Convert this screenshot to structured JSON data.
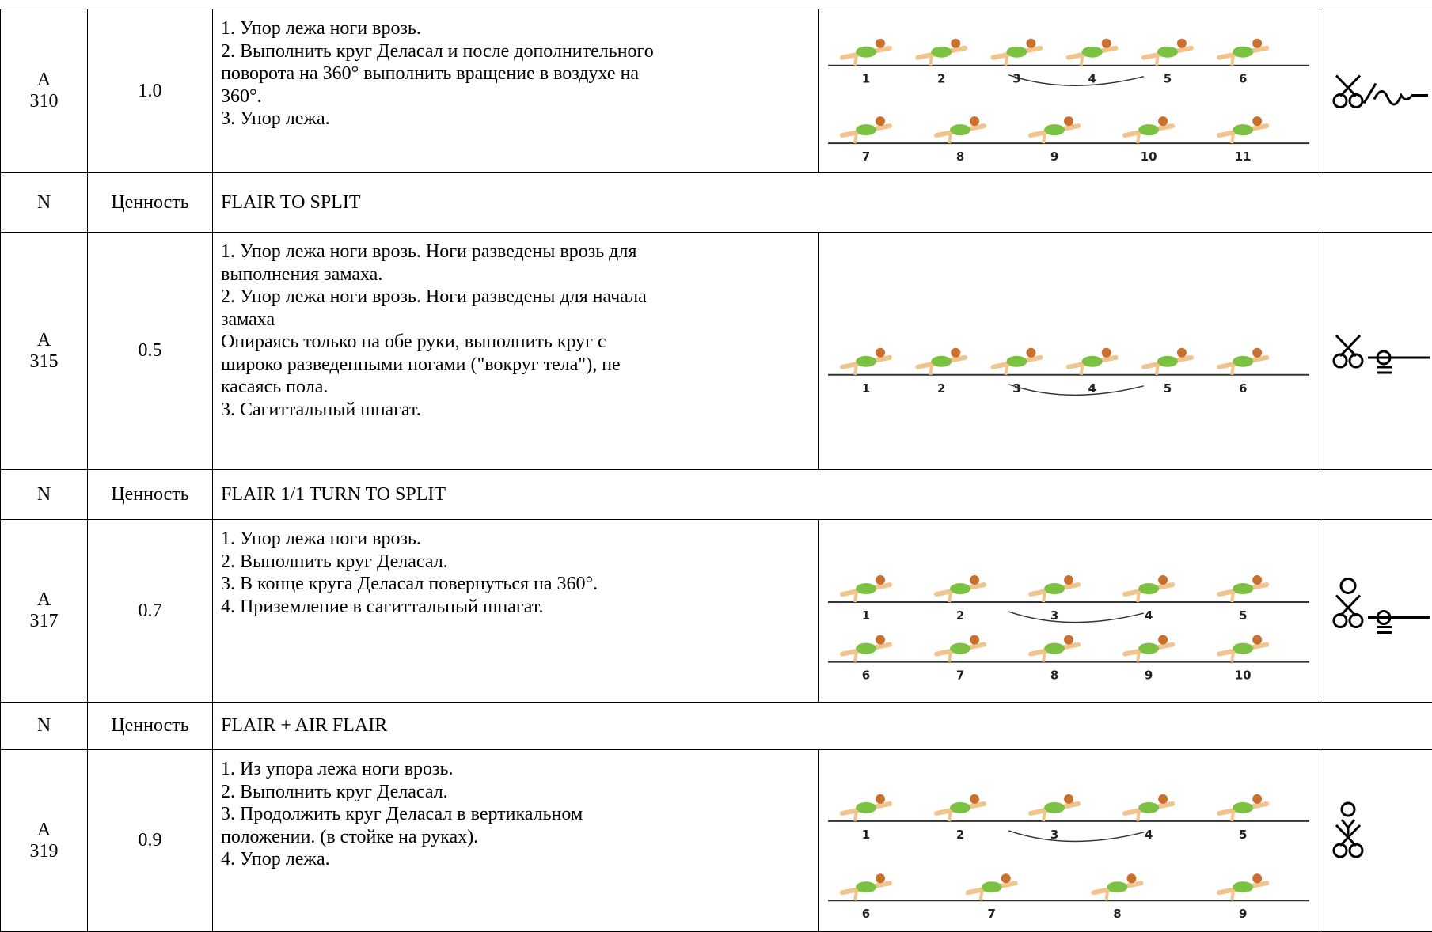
{
  "table": {
    "rows": [
      {
        "code": [
          "A",
          "310"
        ],
        "value": "1.0",
        "description": [
          "1. Упор лежа ноги врозь.",
          "2. Выполнить круг Деласал и после дополнительного",
          "поворота на 360° выполнить вращение в воздухе на",
          "360°.",
          "3. Упор лежа."
        ],
        "figure": [
          [
            "1",
            "2",
            "3",
            "4",
            "5",
            "6"
          ],
          [
            "7",
            "8",
            "9",
            "10",
            "11"
          ]
        ]
      },
      {
        "code": "N",
        "value": "Ценность",
        "name": "FLAIR TO SPLIT"
      },
      {
        "code": [
          "A",
          "315"
        ],
        "value": "0.5",
        "description": [
          "1. Упор лежа ноги врозь. Ноги разведены врозь для",
          "выполнения замаха.",
          "2. Упор лежа ноги врозь. Ноги разведены для начала",
          "замаха",
          "Опираясь только на обе руки, выполнить круг с",
          "широко разведенными ногами (\"вокруг тела\"), не",
          "касаясь пола.",
          "3. Сагиттальный шпагат."
        ],
        "figure": [
          [
            "1",
            "2",
            "3",
            "4",
            "5",
            "6"
          ]
        ]
      },
      {
        "code": "N",
        "value": "Ценность",
        "name": "FLAIR 1/1 TURN TO SPLIT"
      },
      {
        "code": [
          "A",
          "317"
        ],
        "value": "0.7",
        "description": [
          "1. Упор лежа ноги врозь.",
          "2. Выполнить круг Деласал.",
          "3. В конце круга Деласал повернуться на 360°.",
          "4. Приземление в сагиттальный шпагат."
        ],
        "figure": [
          [
            "1",
            "2",
            "3",
            "4",
            "5"
          ],
          [
            "6",
            "7",
            "8",
            "9",
            "10"
          ]
        ]
      },
      {
        "code": "N",
        "value": "Ценность",
        "name": "FLAIR + AIR FLAIR"
      },
      {
        "code": [
          "A",
          "319"
        ],
        "value": "0.9",
        "description": [
          "1. Из упора лежа ноги врозь.",
          "2. Выполнить круг Деласал.",
          "3. Продолжить круг Деласал в вертикальном",
          "положении. (в стойке на руках).",
          "4. Упор лежа."
        ],
        "figure": [
          [
            "1",
            "2",
            "3",
            "4",
            "5"
          ],
          [
            "6",
            "7",
            "8",
            "9"
          ]
        ]
      }
    ]
  }
}
